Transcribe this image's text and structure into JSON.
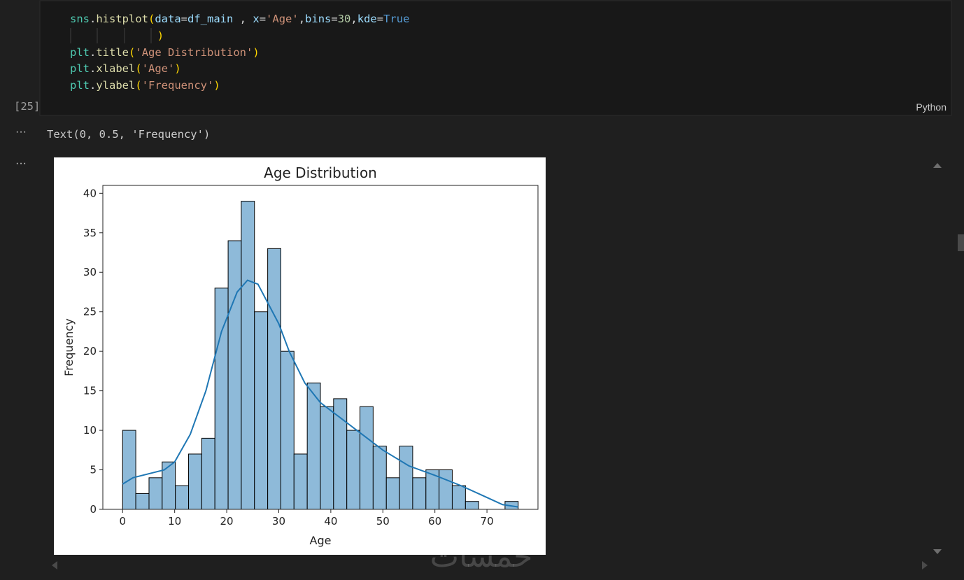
{
  "cell": {
    "execution_count": "[25]",
    "language": "Python",
    "lines": [
      [
        [
          "sns",
          "#4ec9b0"
        ],
        [
          ".",
          "#d4d4d4"
        ],
        [
          "histplot",
          "#dcdcaa"
        ],
        [
          "(",
          "#ffd700"
        ],
        [
          "data",
          "#9cdcfe"
        ],
        [
          "=",
          "#d4d4d4"
        ],
        [
          "df_main",
          "#9cdcfe"
        ],
        [
          " , ",
          "#d4d4d4"
        ],
        [
          "x",
          "#9cdcfe"
        ],
        [
          "=",
          "#d4d4d4"
        ],
        [
          "'Age'",
          "#ce9178"
        ],
        [
          ",",
          "#d4d4d4"
        ],
        [
          "bins",
          "#9cdcfe"
        ],
        [
          "=",
          "#d4d4d4"
        ],
        [
          "30",
          "#b5cea8"
        ],
        [
          ",",
          "#d4d4d4"
        ],
        [
          "kde",
          "#9cdcfe"
        ],
        [
          "=",
          "#d4d4d4"
        ],
        [
          "True",
          "#569cd6"
        ]
      ],
      [
        [
          ")",
          "#ffd700"
        ]
      ],
      [
        [
          "plt",
          "#4ec9b0"
        ],
        [
          ".",
          "#d4d4d4"
        ],
        [
          "title",
          "#dcdcaa"
        ],
        [
          "(",
          "#ffd700"
        ],
        [
          "'Age Distribution'",
          "#ce9178"
        ],
        [
          ")",
          "#ffd700"
        ]
      ],
      [
        [
          "plt",
          "#4ec9b0"
        ],
        [
          ".",
          "#d4d4d4"
        ],
        [
          "xlabel",
          "#dcdcaa"
        ],
        [
          "(",
          "#ffd700"
        ],
        [
          "'Age'",
          "#ce9178"
        ],
        [
          ")",
          "#ffd700"
        ]
      ],
      [
        [
          "plt",
          "#4ec9b0"
        ],
        [
          ".",
          "#d4d4d4"
        ],
        [
          "ylabel",
          "#dcdcaa"
        ],
        [
          "(",
          "#ffd700"
        ],
        [
          "'Frequency'",
          "#ce9178"
        ],
        [
          ")",
          "#ffd700"
        ]
      ]
    ]
  },
  "output": {
    "text": "Text(0, 0.5, 'Frequency')"
  },
  "watermark": "خمسات",
  "chart_data": {
    "type": "histogram",
    "title": "Age Distribution",
    "x_label": "Age",
    "y_label": "Frequency",
    "bins": [
      0,
      2.53,
      5.07,
      7.6,
      10.13,
      12.67,
      15.2,
      17.73,
      20.27,
      22.8,
      25.33,
      27.87,
      30.4,
      32.93,
      35.47,
      38,
      40.53,
      43.07,
      45.6,
      48.13,
      50.67,
      53.2,
      55.73,
      58.27,
      60.8,
      63.33,
      65.87,
      68.4,
      70.93,
      73.47,
      76
    ],
    "values": [
      10,
      2,
      4,
      6,
      3,
      7,
      9,
      28,
      34,
      39,
      25,
      33,
      20,
      7,
      16,
      13,
      14,
      10,
      13,
      8,
      4,
      8,
      4,
      5,
      5,
      3,
      1,
      0,
      0,
      1
    ],
    "color": "#8ebad9",
    "edge_color": "#000000",
    "kde": {
      "color": "#1f77b4",
      "x": [
        0,
        2,
        5,
        8,
        10,
        13,
        16,
        19,
        22,
        24,
        26,
        28,
        30,
        32,
        35,
        38,
        40,
        45,
        50,
        55,
        60,
        65,
        70,
        73,
        76
      ],
      "y": [
        3.2,
        4,
        4.5,
        5,
        6,
        9.5,
        15,
        22.5,
        27.5,
        29,
        28.5,
        26,
        23.5,
        20,
        16,
        13.5,
        12.5,
        10,
        7.5,
        5.5,
        4.3,
        3,
        1.5,
        0.6,
        0.3
      ]
    },
    "xlim": [
      -3.8,
      79.8
    ],
    "ylim": [
      0,
      41
    ],
    "xticks": [
      0,
      10,
      20,
      30,
      40,
      50,
      60,
      70
    ],
    "yticks": [
      0,
      5,
      10,
      15,
      20,
      25,
      30,
      35,
      40
    ]
  }
}
